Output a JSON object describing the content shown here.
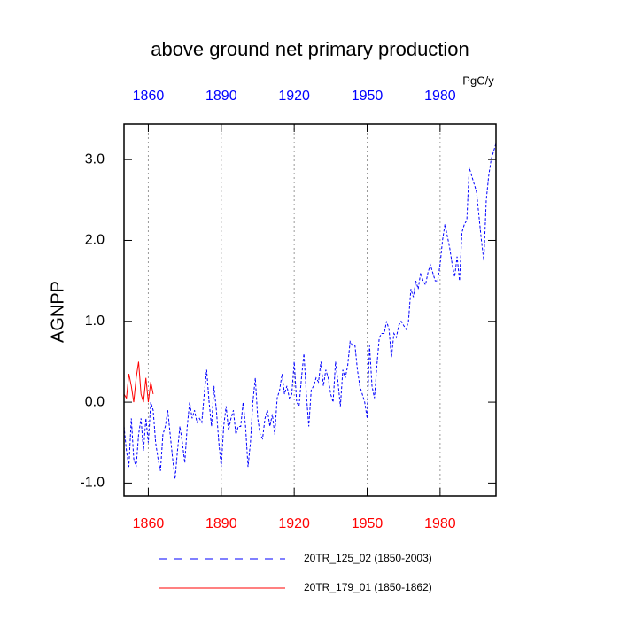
{
  "chart_data": {
    "type": "line",
    "title": "above ground net primary production",
    "ylabel": "AGNPP",
    "units": "PgC/y",
    "xlim": [
      1850,
      2003
    ],
    "ylim": [
      -1.16,
      3.44
    ],
    "xticks": [
      1860,
      1890,
      1920,
      1950,
      1980
    ],
    "yticks": [
      {
        "value": 3,
        "label": "3.0"
      },
      {
        "value": 2,
        "label": "2.0"
      },
      {
        "value": 1,
        "label": "1.0"
      },
      {
        "value": 0,
        "label": "0.0"
      },
      {
        "value": -1,
        "label": "-1.0"
      }
    ],
    "top_tick_color": "#0000ff",
    "bottom_tick_color": "#ff0000",
    "grid": true,
    "series": [
      {
        "name": "20TR_125_02 (1850-2003)",
        "color": "#0000ff",
        "dash": true,
        "x": [
          1850,
          1851,
          1852,
          1853,
          1854,
          1855,
          1856,
          1857,
          1858,
          1859,
          1860,
          1861,
          1862,
          1863,
          1864,
          1865,
          1866,
          1867,
          1868,
          1869,
          1870,
          1871,
          1872,
          1873,
          1874,
          1875,
          1876,
          1877,
          1878,
          1879,
          1880,
          1881,
          1882,
          1883,
          1884,
          1885,
          1886,
          1887,
          1888,
          1889,
          1890,
          1891,
          1892,
          1893,
          1894,
          1895,
          1896,
          1897,
          1898,
          1899,
          1900,
          1901,
          1902,
          1903,
          1904,
          1905,
          1906,
          1907,
          1908,
          1909,
          1910,
          1911,
          1912,
          1913,
          1914,
          1915,
          1916,
          1917,
          1918,
          1919,
          1920,
          1921,
          1922,
          1923,
          1924,
          1925,
          1926,
          1927,
          1928,
          1929,
          1930,
          1931,
          1932,
          1933,
          1934,
          1935,
          1936,
          1937,
          1938,
          1939,
          1940,
          1941,
          1942,
          1943,
          1944,
          1945,
          1946,
          1947,
          1948,
          1949,
          1950,
          1951,
          1952,
          1953,
          1954,
          1955,
          1956,
          1957,
          1958,
          1959,
          1960,
          1961,
          1962,
          1963,
          1964,
          1965,
          1966,
          1967,
          1968,
          1969,
          1970,
          1971,
          1972,
          1973,
          1974,
          1975,
          1976,
          1977,
          1978,
          1979,
          1980,
          1981,
          1982,
          1983,
          1984,
          1985,
          1986,
          1987,
          1988,
          1989,
          1990,
          1991,
          1992,
          1993,
          1994,
          1995,
          1996,
          1997,
          1998,
          1999,
          2000,
          2001,
          2002,
          2003
        ],
        "values": [
          -0.3,
          -0.6,
          -0.8,
          -0.2,
          -0.7,
          -0.8,
          -0.4,
          -0.2,
          -0.6,
          -0.2,
          -0.5,
          0.0,
          -0.1,
          -0.5,
          -0.7,
          -0.85,
          -0.4,
          -0.3,
          -0.1,
          -0.4,
          -0.7,
          -0.95,
          -0.6,
          -0.3,
          -0.5,
          -0.75,
          -0.3,
          0.0,
          -0.2,
          -0.1,
          -0.25,
          -0.2,
          -0.25,
          0.1,
          0.4,
          0.0,
          -0.3,
          0.2,
          -0.1,
          -0.5,
          -0.8,
          -0.3,
          -0.05,
          -0.35,
          -0.2,
          -0.1,
          -0.4,
          -0.3,
          -0.3,
          0.0,
          -0.3,
          -0.8,
          -0.5,
          0.0,
          0.3,
          -0.2,
          -0.4,
          -0.45,
          -0.2,
          -0.1,
          -0.3,
          -0.15,
          -0.4,
          0.05,
          0.15,
          0.35,
          0.1,
          0.2,
          0.05,
          0.1,
          0.5,
          0.0,
          -0.05,
          0.3,
          0.6,
          0.1,
          -0.3,
          0.15,
          0.2,
          0.3,
          0.25,
          0.5,
          0.2,
          0.4,
          0.3,
          0.1,
          0.0,
          0.5,
          0.25,
          -0.05,
          0.4,
          0.3,
          0.45,
          0.75,
          0.7,
          0.7,
          0.4,
          0.2,
          0.1,
          0.0,
          -0.2,
          0.7,
          0.2,
          0.05,
          0.45,
          0.8,
          0.85,
          0.85,
          1.0,
          0.9,
          0.55,
          0.85,
          0.8,
          0.95,
          1.0,
          0.95,
          0.9,
          1.0,
          1.4,
          1.3,
          1.5,
          1.4,
          1.6,
          1.5,
          1.45,
          1.6,
          1.7,
          1.6,
          1.5,
          1.5,
          1.7,
          2.0,
          2.2,
          2.05,
          1.9,
          1.7,
          1.55,
          1.8,
          1.5,
          2.1,
          2.2,
          2.25,
          2.9,
          2.8,
          2.7,
          2.6,
          2.3,
          2.0,
          1.75,
          2.5,
          2.8,
          3.0,
          3.1,
          3.2
        ]
      },
      {
        "name": "20TR_179_01 (1850-1862)",
        "color": "#ff0000",
        "dash": false,
        "x": [
          1850,
          1851,
          1852,
          1853,
          1854,
          1855,
          1856,
          1857,
          1858,
          1859,
          1860,
          1861,
          1862
        ],
        "values": [
          0.1,
          0.05,
          0.35,
          0.2,
          0.0,
          0.3,
          0.5,
          0.1,
          0.0,
          0.3,
          0.0,
          0.25,
          0.1
        ]
      }
    ]
  }
}
